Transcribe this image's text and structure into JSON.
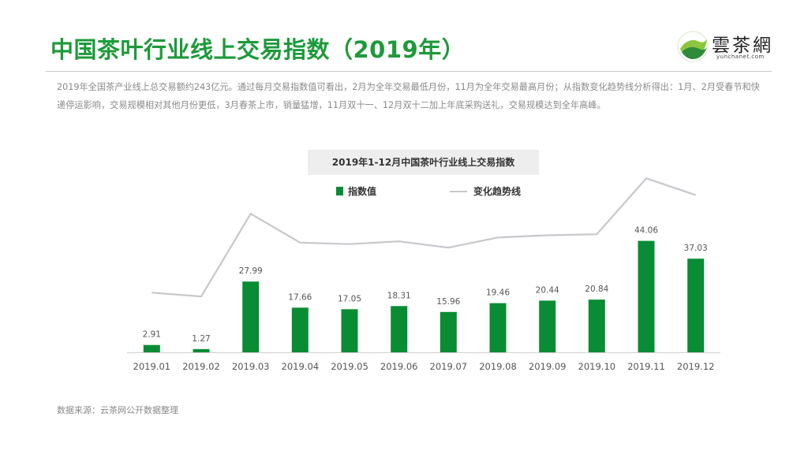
{
  "page": {
    "title": "中国茶叶行业线上交易指数（2019年）",
    "intro": "2019年全国茶产业线上总交易额约243亿元。通过每月交易指数值可看出，2月为全年交易最低月份，11月为全年交易最高月份；从指数变化趋势线分析得出：1月、2月受春节和快递停运影响，交易规模相对其他月份更低，3月春茶上市，销量猛增，11月双十一、12月双十二加上年底采购送礼，交易规模达到全年高峰。",
    "source": "数据来源：云茶网公开数据整理"
  },
  "logo": {
    "text": "雲茶網",
    "subtext": "yunchanet.com"
  },
  "colors": {
    "title": "#1d9a3a",
    "bar": "#0a8c34",
    "trend_line": "#c7c7cc"
  },
  "chart_data": {
    "type": "bar",
    "title": "2019年1-12月中国茶叶行业线上交易指数",
    "categories": [
      "2019.01",
      "2019.02",
      "2019.03",
      "2019.04",
      "2019.05",
      "2019.06",
      "2019.07",
      "2019.08",
      "2019.09",
      "2019.10",
      "2019.11",
      "2019.12"
    ],
    "series": [
      {
        "name": "指数值",
        "type": "bar",
        "values": [
          2.91,
          1.27,
          27.99,
          17.66,
          17.05,
          18.31,
          15.96,
          19.46,
          20.44,
          20.84,
          44.06,
          37.03
        ]
      },
      {
        "name": "变化趋势线",
        "type": "line",
        "values": [
          23.6,
          22.1,
          54.8,
          43.4,
          42.8,
          43.9,
          41.4,
          45.4,
          46.3,
          46.7,
          68.8,
          62.2
        ]
      }
    ],
    "ylim": [
      0,
      72
    ],
    "legend": "top-center",
    "grid": false
  }
}
